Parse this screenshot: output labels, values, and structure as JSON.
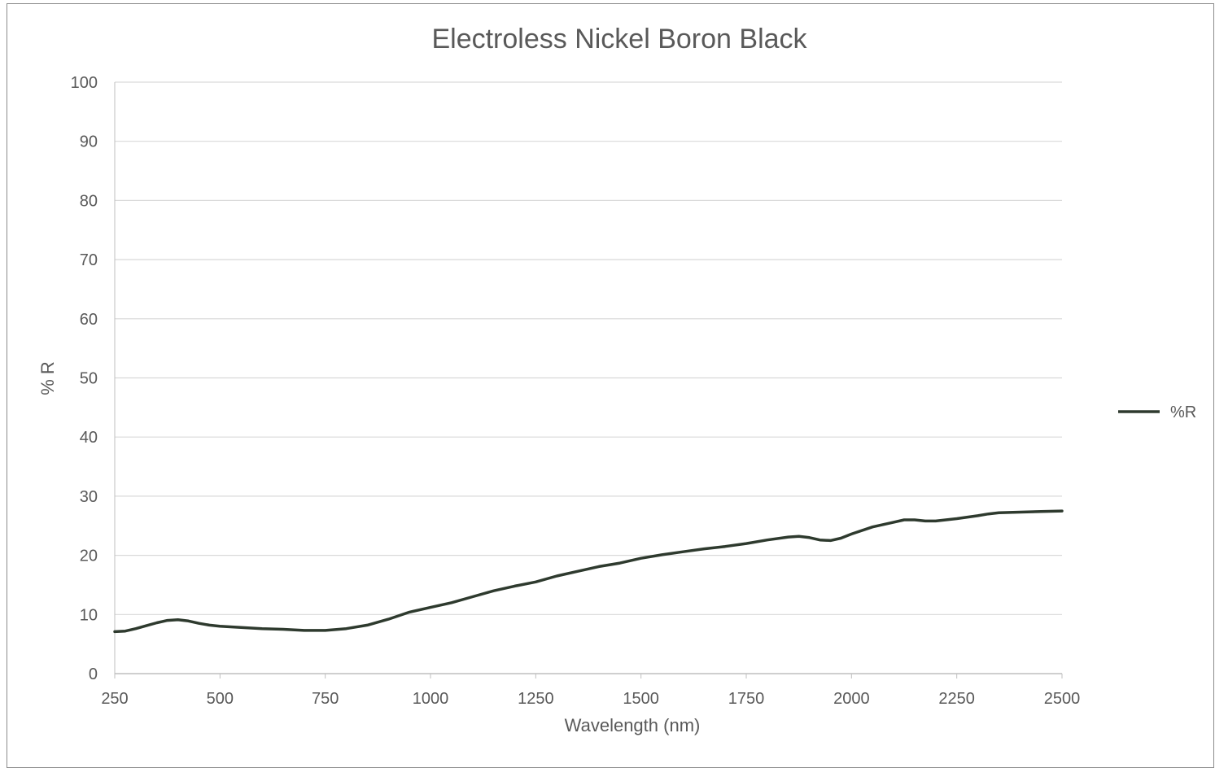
{
  "chart_data": {
    "type": "line",
    "title": "Electroless Nickel Boron Black",
    "xlabel": "Wavelength (nm)",
    "ylabel": "% R",
    "xlim": [
      250,
      2500
    ],
    "ylim": [
      0,
      100
    ],
    "x_ticks": [
      "250",
      "500",
      "750",
      "1000",
      "1250",
      "1500",
      "1750",
      "2000",
      "2250",
      "2500"
    ],
    "y_ticks": [
      "0",
      "10",
      "20",
      "30",
      "40",
      "50",
      "60",
      "70",
      "80",
      "90",
      "100"
    ],
    "grid": "horizontal",
    "legend_position": "right",
    "series": [
      {
        "name": "%R",
        "color": "#2e3a2e",
        "x": [
          250,
          275,
          300,
          325,
          350,
          375,
          400,
          425,
          450,
          475,
          500,
          550,
          600,
          650,
          700,
          750,
          800,
          850,
          900,
          950,
          1000,
          1050,
          1100,
          1150,
          1200,
          1250,
          1300,
          1350,
          1400,
          1450,
          1500,
          1550,
          1600,
          1650,
          1700,
          1750,
          1800,
          1850,
          1875,
          1900,
          1925,
          1950,
          1975,
          2000,
          2050,
          2100,
          2125,
          2150,
          2175,
          2200,
          2250,
          2300,
          2325,
          2350,
          2400,
          2450,
          2500
        ],
        "y": [
          7.1,
          7.2,
          7.6,
          8.1,
          8.6,
          9.0,
          9.1,
          8.9,
          8.5,
          8.2,
          8.0,
          7.8,
          7.6,
          7.5,
          7.3,
          7.3,
          7.6,
          8.2,
          9.2,
          10.4,
          11.2,
          12.0,
          13.0,
          14.0,
          14.8,
          15.5,
          16.5,
          17.3,
          18.1,
          18.7,
          19.5,
          20.1,
          20.6,
          21.1,
          21.5,
          22.0,
          22.6,
          23.1,
          23.2,
          23.0,
          22.6,
          22.5,
          22.9,
          23.6,
          24.8,
          25.6,
          26.0,
          26.0,
          25.8,
          25.8,
          26.2,
          26.7,
          27.0,
          27.2,
          27.3,
          27.4,
          27.5
        ]
      }
    ]
  }
}
